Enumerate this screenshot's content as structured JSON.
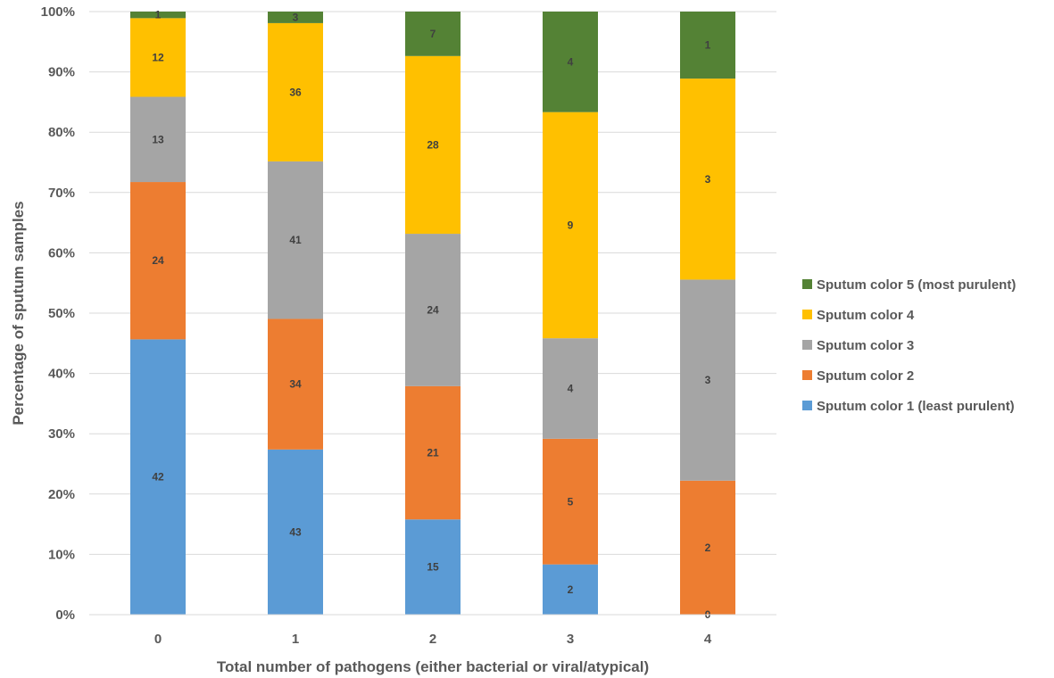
{
  "chart_data": {
    "type": "bar",
    "stacked": "percent",
    "categories": [
      "0",
      "1",
      "2",
      "3",
      "4"
    ],
    "series": [
      {
        "name": "Sputum color 1 (least purulent)",
        "color": "#5B9BD5",
        "values": [
          42,
          43,
          15,
          2,
          0
        ]
      },
      {
        "name": "Sputum color 2",
        "color": "#ED7D31",
        "values": [
          24,
          34,
          21,
          5,
          2
        ]
      },
      {
        "name": "Sputum color 3",
        "color": "#A5A5A5",
        "values": [
          13,
          41,
          24,
          4,
          3
        ]
      },
      {
        "name": "Sputum color 4",
        "color": "#FFC000",
        "values": [
          12,
          36,
          28,
          9,
          3
        ]
      },
      {
        "name": "Sputum color 5 (most purulent)",
        "color": "#548235",
        "values": [
          1,
          3,
          7,
          4,
          1
        ]
      }
    ],
    "yticks": [
      "0%",
      "10%",
      "20%",
      "30%",
      "40%",
      "50%",
      "60%",
      "70%",
      "80%",
      "90%",
      "100%"
    ],
    "ylim": [
      0,
      100
    ],
    "xlabel": "Total number of pathogens (either bacterial or viral/atypical)",
    "ylabel": "Percentage of sputum samples",
    "grid": true,
    "legend": "right",
    "legend_order": [
      4,
      3,
      2,
      1,
      0
    ]
  }
}
